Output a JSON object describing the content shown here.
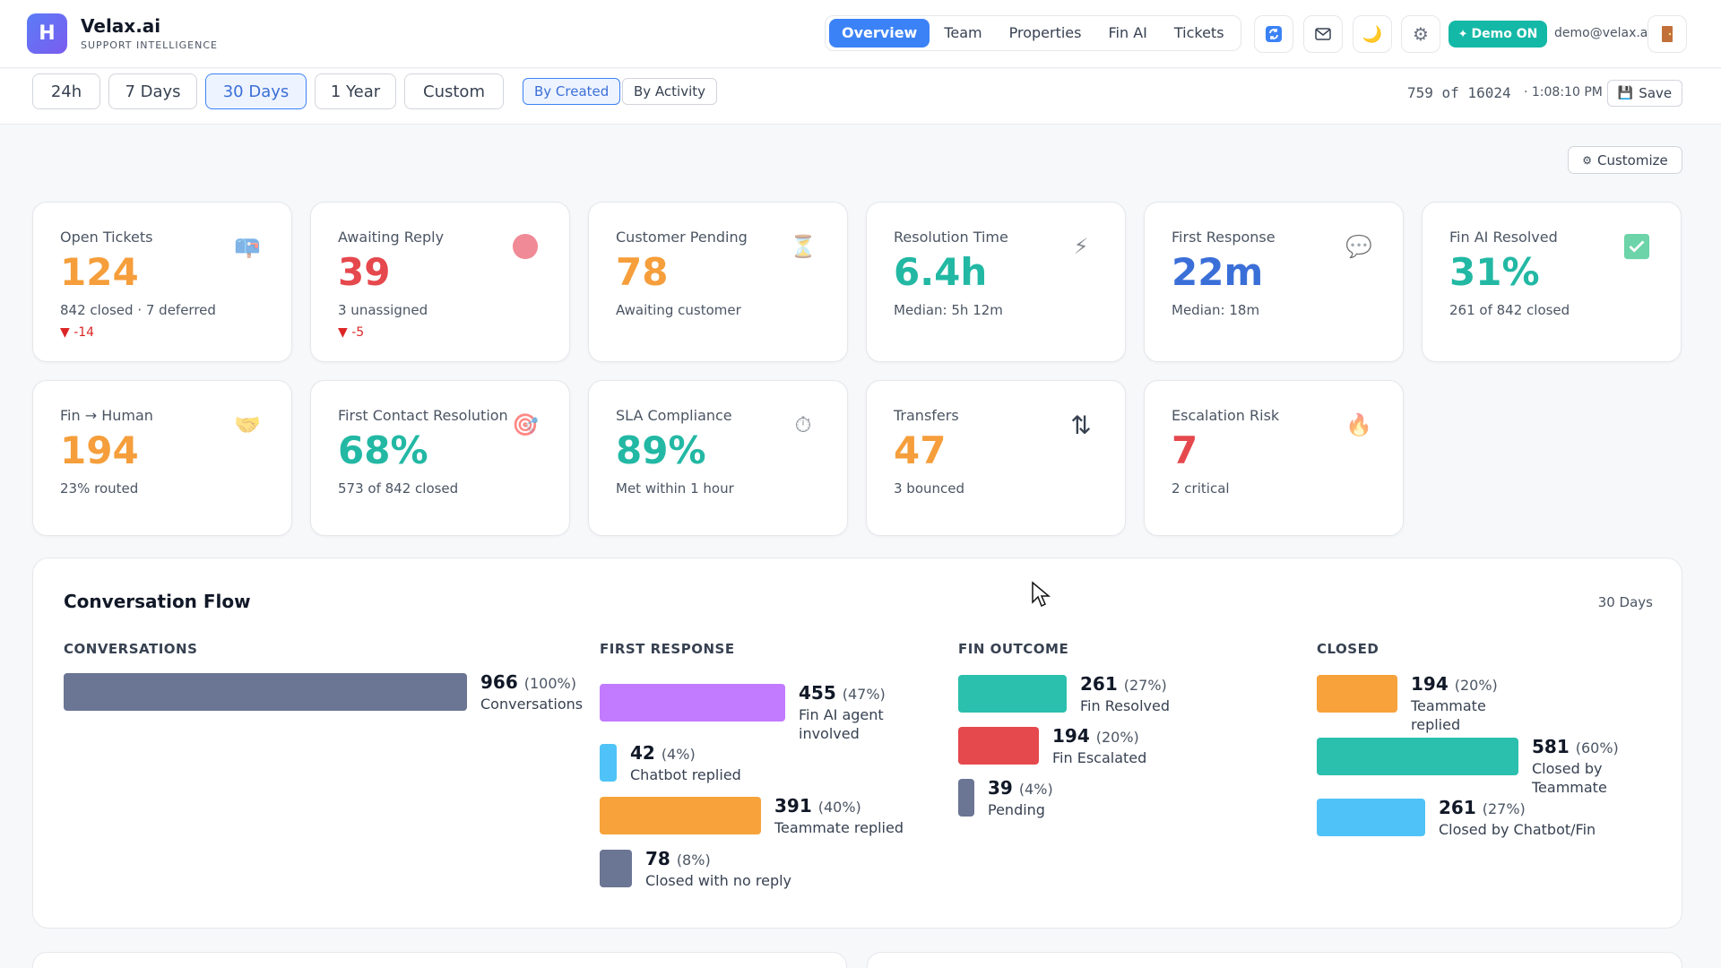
{
  "app": {
    "logo_letter": "H",
    "name": "Velax.ai",
    "subtitle": "SUPPORT INTELLIGENCE"
  },
  "nav": {
    "tabs": [
      "Overview",
      "Team",
      "Properties",
      "Fin AI",
      "Tickets"
    ],
    "active": "Overview"
  },
  "header_icons": [
    "refresh-icon",
    "mail-icon",
    "moon-icon",
    "gear-icon"
  ],
  "demo": {
    "label": "Demo ON",
    "color": "#14b8a6"
  },
  "user": {
    "email": "demo@velax.ai"
  },
  "filters": {
    "ranges": [
      "24h",
      "7 Days",
      "30 Days",
      "1 Year",
      "Custom"
    ],
    "active_range": "30 Days",
    "modes": [
      "By Created",
      "By Activity"
    ],
    "active_mode": "By Created",
    "count": "759 of 16024",
    "time": "· 1:08:10 PM",
    "save_label": "Save"
  },
  "customize_label": "Customize",
  "kpis": [
    {
      "label": "Open Tickets",
      "value": "124",
      "color": "#f59e3b",
      "sub": "842 closed · 7 deferred",
      "delta": "▼ -14",
      "icon": "mailbox-icon",
      "glyph": "📪"
    },
    {
      "label": "Awaiting Reply",
      "value": "39",
      "color": "#e5484d",
      "sub": "3 unassigned",
      "delta": "▼ -5",
      "icon": "red-circle-icon",
      "glyph": ""
    },
    {
      "label": "Customer Pending",
      "value": "78",
      "color": "#f59e3b",
      "sub": "Awaiting customer",
      "delta": "",
      "icon": "hourglass-icon",
      "glyph": "⏳"
    },
    {
      "label": "Resolution Time",
      "value": "6.4h",
      "color": "#22b8a4",
      "sub": "Median: 5h 12m",
      "delta": "",
      "icon": "lightning-icon",
      "glyph": "⚡"
    },
    {
      "label": "First Response",
      "value": "22m",
      "color": "#3b6fd8",
      "sub": "Median: 18m",
      "delta": "",
      "icon": "speech-bubble-icon",
      "glyph": "💬"
    },
    {
      "label": "Fin AI Resolved",
      "value": "31%",
      "color": "#22b8a4",
      "sub": "261 of 842 closed",
      "delta": "",
      "icon": "check-box-icon",
      "glyph": "✓"
    },
    {
      "label": "Fin → Human",
      "value": "194",
      "color": "#f59e3b",
      "sub": "23% routed",
      "delta": "",
      "icon": "handshake-icon",
      "glyph": "🤝"
    },
    {
      "label": "First Contact Resolution",
      "value": "68%",
      "color": "#22b8a4",
      "sub": "573 of 842 closed",
      "delta": "",
      "icon": "target-icon",
      "glyph": "🎯"
    },
    {
      "label": "SLA Compliance",
      "value": "89%",
      "color": "#22b8a4",
      "sub": "Met within 1 hour",
      "delta": "",
      "icon": "stopwatch-icon",
      "glyph": "⏱"
    },
    {
      "label": "Transfers",
      "value": "47",
      "color": "#f59e3b",
      "sub": "3 bounced",
      "delta": "",
      "icon": "transfer-arrows-icon",
      "glyph": "⇅"
    },
    {
      "label": "Escalation Risk",
      "value": "7",
      "color": "#e5484d",
      "sub": "2 critical",
      "delta": "",
      "icon": "fire-icon",
      "glyph": "🔥"
    }
  ],
  "flow": {
    "title": "Conversation Flow",
    "range": "30 Days",
    "columns": [
      {
        "head": "CONVERSATIONS",
        "items": [
          {
            "num": "966",
            "pct": "(100%)",
            "cap": "Conversations",
            "color": "#6b7594"
          }
        ]
      },
      {
        "head": "FIRST RESPONSE",
        "items": [
          {
            "num": "455",
            "pct": "(47%)",
            "cap": "Fin AI agent involved",
            "color": "#c27bff"
          },
          {
            "num": "42",
            "pct": "(4%)",
            "cap": "Chatbot replied",
            "color": "#4fc3f7"
          },
          {
            "num": "391",
            "pct": "(40%)",
            "cap": "Teammate replied",
            "color": "#f7a23b"
          },
          {
            "num": "78",
            "pct": "(8%)",
            "cap": "Closed with no reply",
            "color": "#6b7594"
          }
        ]
      },
      {
        "head": "FIN OUTCOME",
        "items": [
          {
            "num": "261",
            "pct": "(27%)",
            "cap": "Fin Resolved",
            "color": "#2bbfad"
          },
          {
            "num": "194",
            "pct": "(20%)",
            "cap": "Fin Escalated",
            "color": "#e5484d"
          },
          {
            "num": "39",
            "pct": "(4%)",
            "cap": "Pending",
            "color": "#6b7594"
          }
        ]
      },
      {
        "head": "CLOSED",
        "items": [
          {
            "num": "194",
            "pct": "(20%)",
            "cap": "Teammate replied",
            "color": "#f7a23b"
          },
          {
            "num": "581",
            "pct": "(60%)",
            "cap": "Closed by Teammate",
            "color": "#2bbfad"
          },
          {
            "num": "261",
            "pct": "(27%)",
            "cap": "Closed by Chatbot/Fin",
            "color": "#4fc3f7"
          }
        ]
      }
    ]
  }
}
